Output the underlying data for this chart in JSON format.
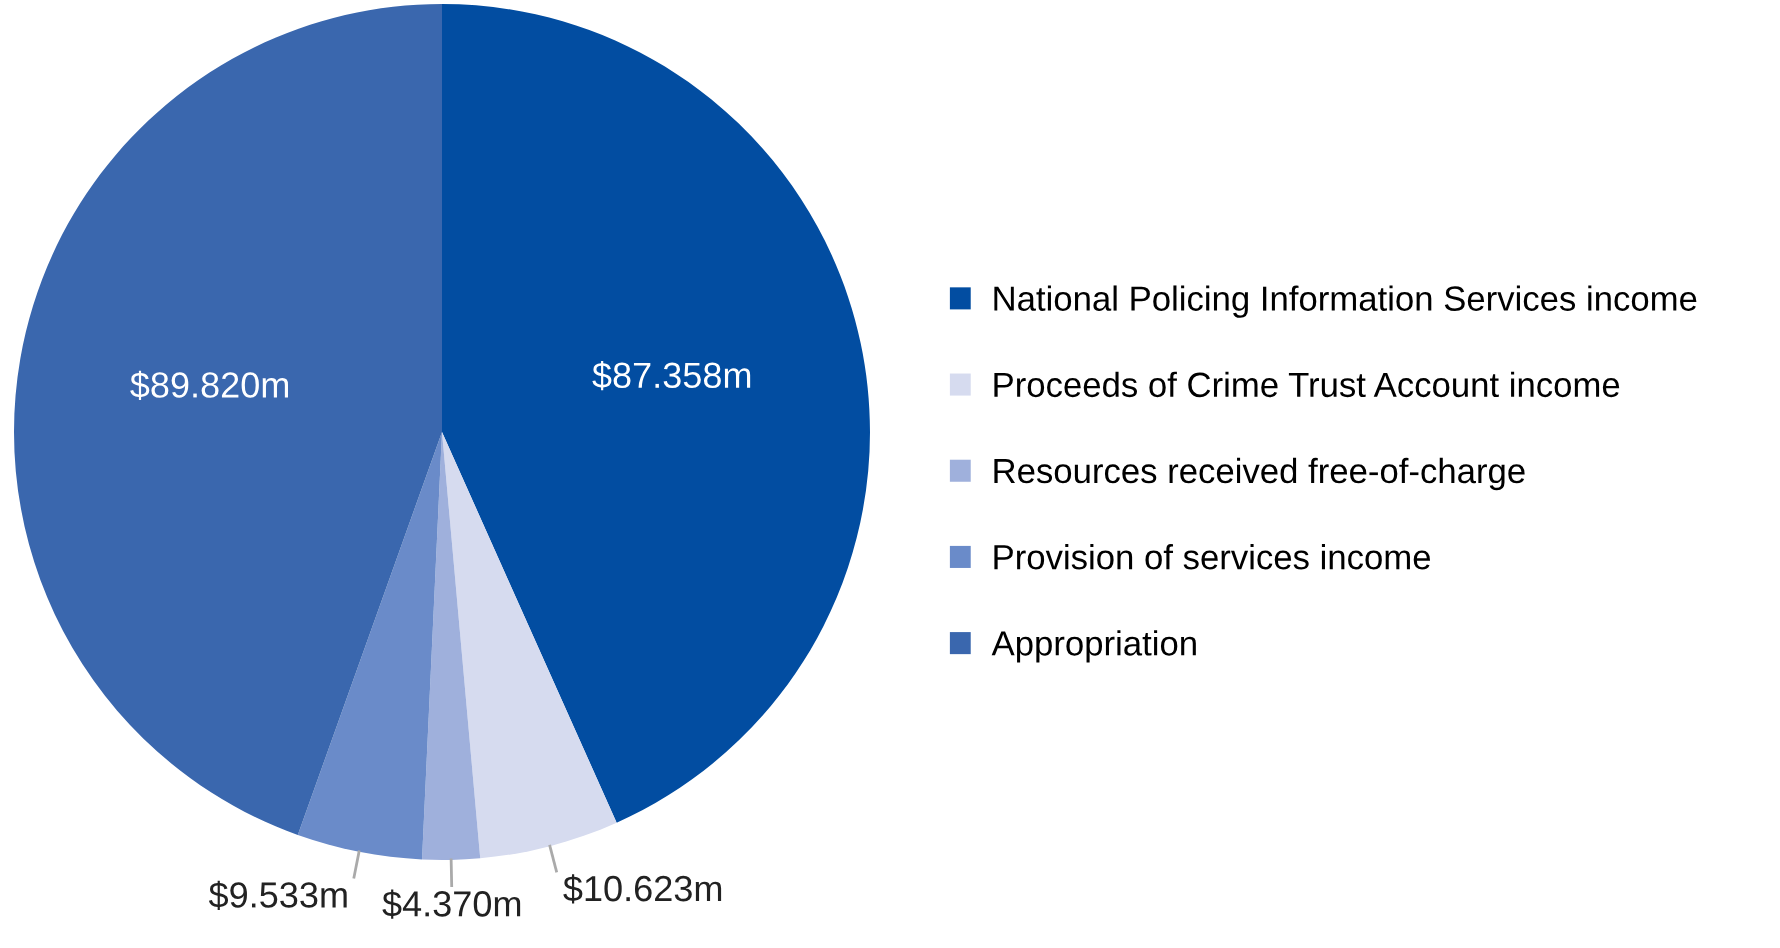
{
  "chart_data": {
    "type": "pie",
    "categories": [
      "National Policing Information Services income",
      "Proceeds of Crime Trust Account income",
      "Resources received free-of-charge",
      "Provision of services income",
      "Appropriation"
    ],
    "values": [
      87.358,
      10.623,
      4.37,
      9.533,
      89.82
    ],
    "colors": [
      "#024da1",
      "#d6dbef",
      "#9fb0dc",
      "#6a8bc9",
      "#3a67ae"
    ],
    "value_labels": [
      "$87.358m",
      "$10.623m",
      "$4.370m",
      "$9.533m",
      "$89.820m"
    ],
    "legend": "right"
  }
}
